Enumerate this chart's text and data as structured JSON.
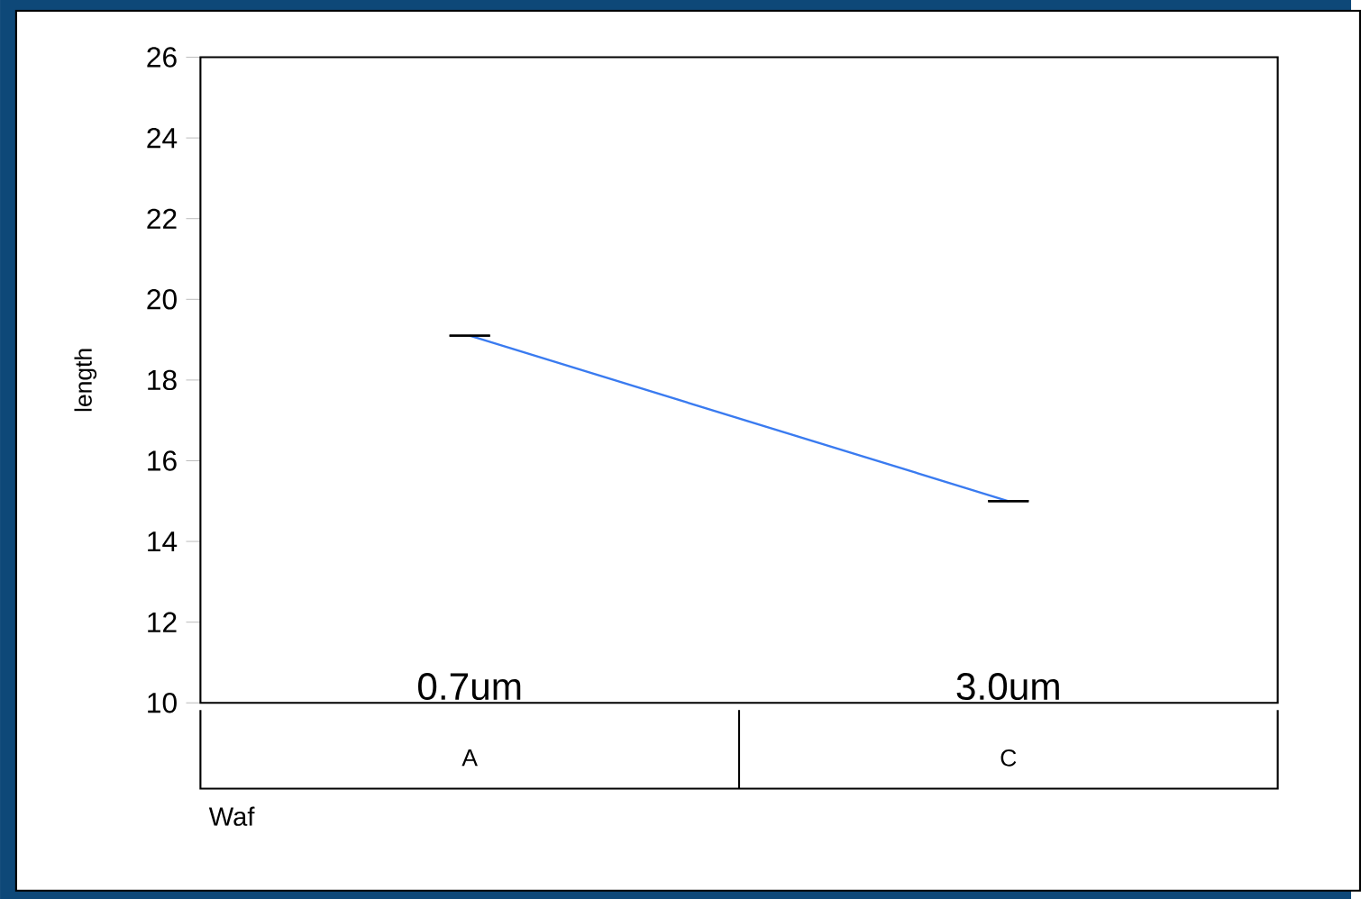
{
  "chart_data": {
    "type": "line",
    "xlabel": "Waf",
    "ylabel": "length",
    "categories": [
      "A",
      "C"
    ],
    "series": [
      {
        "color": "#3a7bf0",
        "values": [
          19.1,
          15.0
        ],
        "errors": [
          0,
          0
        ]
      }
    ],
    "ylim": [
      10,
      26
    ],
    "yticks": [
      10,
      12,
      14,
      16,
      18,
      20,
      22,
      24,
      26
    ],
    "grid": false,
    "annotations": [
      "0.7um",
      "3.0um"
    ]
  }
}
